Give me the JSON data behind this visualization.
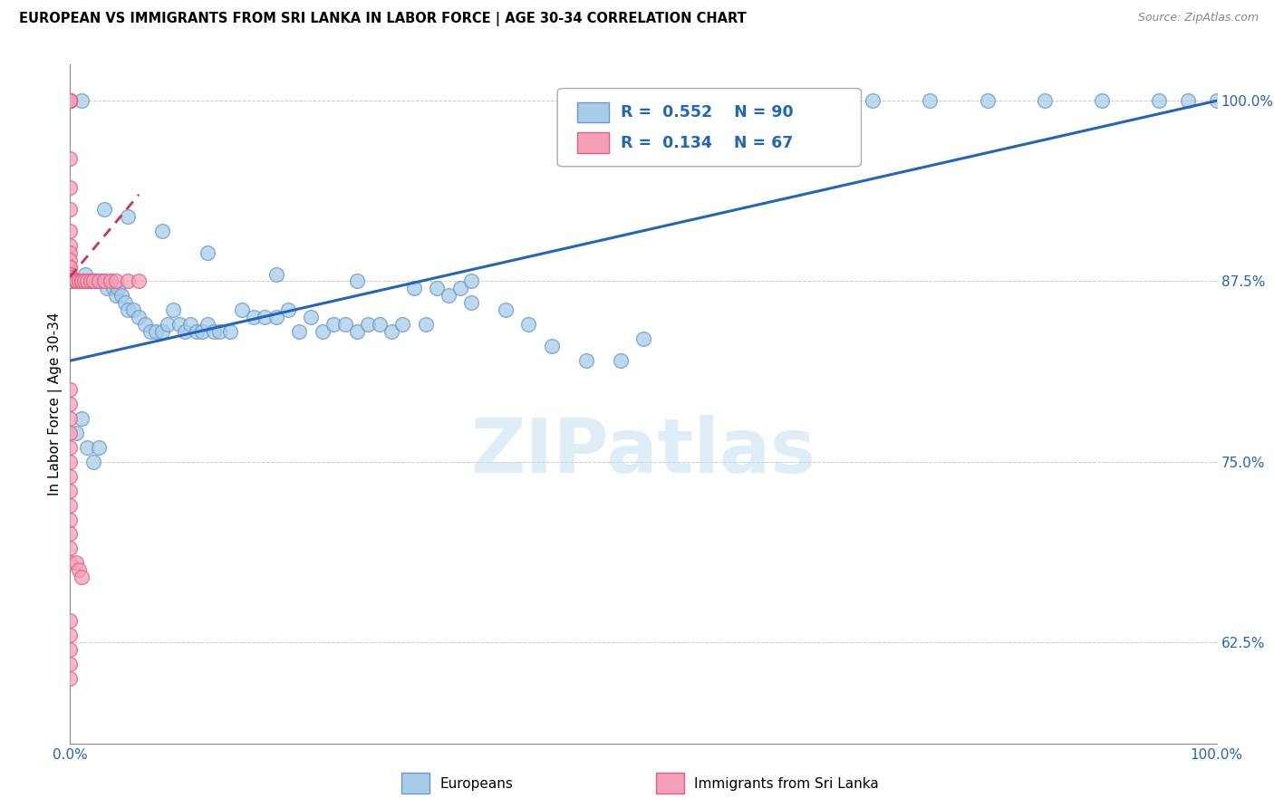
{
  "title": "EUROPEAN VS IMMIGRANTS FROM SRI LANKA IN LABOR FORCE | AGE 30-34 CORRELATION CHART",
  "source": "Source: ZipAtlas.com",
  "ylabel": "In Labor Force | Age 30-34",
  "x_min": 0.0,
  "x_max": 1.0,
  "y_min": 0.555,
  "y_max": 1.025,
  "y_ticks": [
    0.625,
    0.75,
    0.875,
    1.0
  ],
  "y_tick_labels": [
    "62.5%",
    "75.0%",
    "87.5%",
    "100.0%"
  ],
  "x_ticks": [
    0.0,
    0.1,
    0.2,
    0.3,
    0.4,
    0.5,
    0.6,
    0.7,
    0.8,
    0.9,
    1.0
  ],
  "x_tick_labels": [
    "0.0%",
    "",
    "",
    "",
    "",
    "",
    "",
    "",
    "",
    "",
    "100.0%"
  ],
  "blue_color": "#a8cce8",
  "blue_edge_color": "#6699cc",
  "pink_color": "#f4a0b8",
  "pink_edge_color": "#e06080",
  "trend_blue_color": "#2266bb",
  "trend_pink_color": "#cc3355",
  "legend_r_blue": "0.552",
  "legend_n_blue": "90",
  "legend_r_pink": "0.134",
  "legend_n_pink": "67",
  "watermark": "ZIPatlas",
  "blue_scatter_x": [
    0.005,
    0.005,
    0.008,
    0.008,
    0.01,
    0.01,
    0.012,
    0.013,
    0.015,
    0.015,
    0.018,
    0.02,
    0.02,
    0.022,
    0.025,
    0.028,
    0.03,
    0.032,
    0.035,
    0.038,
    0.04,
    0.042,
    0.045,
    0.048,
    0.05,
    0.055,
    0.06,
    0.065,
    0.07,
    0.075,
    0.08,
    0.085,
    0.09,
    0.095,
    0.1,
    0.105,
    0.11,
    0.115,
    0.12,
    0.125,
    0.13,
    0.14,
    0.15,
    0.16,
    0.17,
    0.18,
    0.19,
    0.2,
    0.21,
    0.22,
    0.23,
    0.24,
    0.25,
    0.26,
    0.27,
    0.28,
    0.29,
    0.3,
    0.31,
    0.32,
    0.33,
    0.34,
    0.35,
    0.38,
    0.4,
    0.42,
    0.45,
    0.48,
    0.5,
    0.03,
    0.05,
    0.08,
    0.12,
    0.18,
    0.25,
    0.35,
    0.6,
    0.7,
    0.75,
    0.8,
    0.85,
    0.9,
    0.95,
    0.975,
    1.0,
    0.005,
    0.01,
    0.015,
    0.02,
    0.025
  ],
  "blue_scatter_y": [
    0.875,
    0.875,
    0.875,
    0.875,
    0.875,
    1.0,
    0.875,
    0.88,
    0.875,
    0.875,
    0.875,
    0.875,
    0.875,
    0.875,
    0.875,
    0.875,
    0.875,
    0.87,
    0.875,
    0.87,
    0.865,
    0.87,
    0.865,
    0.86,
    0.855,
    0.855,
    0.85,
    0.845,
    0.84,
    0.84,
    0.84,
    0.845,
    0.855,
    0.845,
    0.84,
    0.845,
    0.84,
    0.84,
    0.845,
    0.84,
    0.84,
    0.84,
    0.855,
    0.85,
    0.85,
    0.85,
    0.855,
    0.84,
    0.85,
    0.84,
    0.845,
    0.845,
    0.84,
    0.845,
    0.845,
    0.84,
    0.845,
    0.87,
    0.845,
    0.87,
    0.865,
    0.87,
    0.86,
    0.855,
    0.845,
    0.83,
    0.82,
    0.82,
    0.835,
    0.925,
    0.92,
    0.91,
    0.895,
    0.88,
    0.875,
    0.875,
    1.0,
    1.0,
    1.0,
    1.0,
    1.0,
    1.0,
    1.0,
    1.0,
    1.0,
    0.77,
    0.78,
    0.76,
    0.75,
    0.76
  ],
  "pink_scatter_x": [
    0.0,
    0.0,
    0.0,
    0.0,
    0.0,
    0.0,
    0.0,
    0.0,
    0.0,
    0.0,
    0.0,
    0.0,
    0.0,
    0.0,
    0.0,
    0.0,
    0.0,
    0.0,
    0.0,
    0.0,
    0.0,
    0.0,
    0.0,
    0.0,
    0.0,
    0.0,
    0.0,
    0.0,
    0.0,
    0.0,
    0.005,
    0.005,
    0.005,
    0.008,
    0.01,
    0.01,
    0.012,
    0.015,
    0.018,
    0.02,
    0.025,
    0.03,
    0.035,
    0.04,
    0.05,
    0.06,
    0.0,
    0.0,
    0.0,
    0.0,
    0.0,
    0.0,
    0.0,
    0.0,
    0.0,
    0.0,
    0.0,
    0.0,
    0.0,
    0.005,
    0.008,
    0.01,
    0.0,
    0.0,
    0.0,
    0.0,
    0.0
  ],
  "pink_scatter_y": [
    1.0,
    1.0,
    1.0,
    1.0,
    1.0,
    1.0,
    1.0,
    1.0,
    0.96,
    0.94,
    0.925,
    0.91,
    0.9,
    0.895,
    0.89,
    0.885,
    0.885,
    0.88,
    0.88,
    0.878,
    0.876,
    0.875,
    0.875,
    0.875,
    0.875,
    0.875,
    0.875,
    0.875,
    0.875,
    0.875,
    0.875,
    0.875,
    0.875,
    0.875,
    0.875,
    0.875,
    0.875,
    0.875,
    0.875,
    0.875,
    0.875,
    0.875,
    0.875,
    0.875,
    0.875,
    0.875,
    0.8,
    0.79,
    0.78,
    0.77,
    0.76,
    0.75,
    0.74,
    0.73,
    0.72,
    0.71,
    0.7,
    0.69,
    0.68,
    0.68,
    0.675,
    0.67,
    0.64,
    0.63,
    0.62,
    0.61,
    0.6
  ],
  "blue_trend_x0": 0.0,
  "blue_trend_y0": 0.82,
  "blue_trend_x1": 1.0,
  "blue_trend_y1": 1.0,
  "pink_trend_x0": 0.0,
  "pink_trend_y0": 0.878,
  "pink_trend_x1": 0.06,
  "pink_trend_y1": 0.935
}
